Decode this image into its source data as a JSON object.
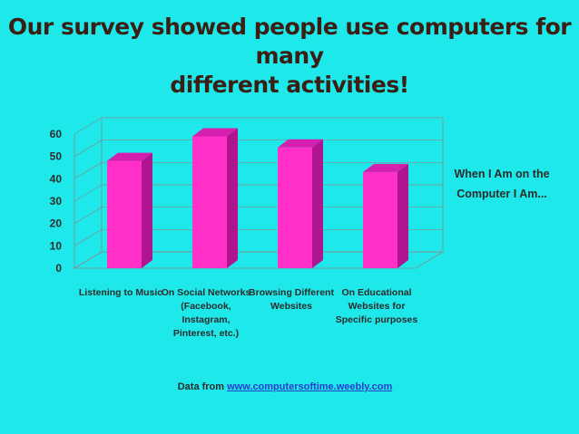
{
  "title_lines": [
    "Our survey showed people use computers for many",
    "different activities!"
  ],
  "chart_data": {
    "type": "bar",
    "categories": [
      [
        "Listening to Music"
      ],
      [
        "On Social Networks",
        "(Facebook,",
        "Instagram,",
        "Pinterest, etc.)"
      ],
      [
        "Browsing Different",
        "Websites"
      ],
      [
        "On Educational",
        "Websites for",
        "Specific purposes"
      ]
    ],
    "values": [
      48,
      59,
      54,
      43
    ],
    "ylim": [
      0,
      60
    ],
    "yticks": [
      0,
      10,
      20,
      30,
      40,
      50,
      60
    ],
    "legend_lines": [
      "When I Am on the",
      "Computer I Am..."
    ],
    "legend_placement": "right",
    "grid": true,
    "colors": {
      "bar_front": "#ff2fc8",
      "bar_side": "#b01590",
      "bar_top": "#d51fae"
    }
  },
  "source": {
    "prefix": "Data from ",
    "link_text": "www.computersoftime.weebly.com"
  }
}
